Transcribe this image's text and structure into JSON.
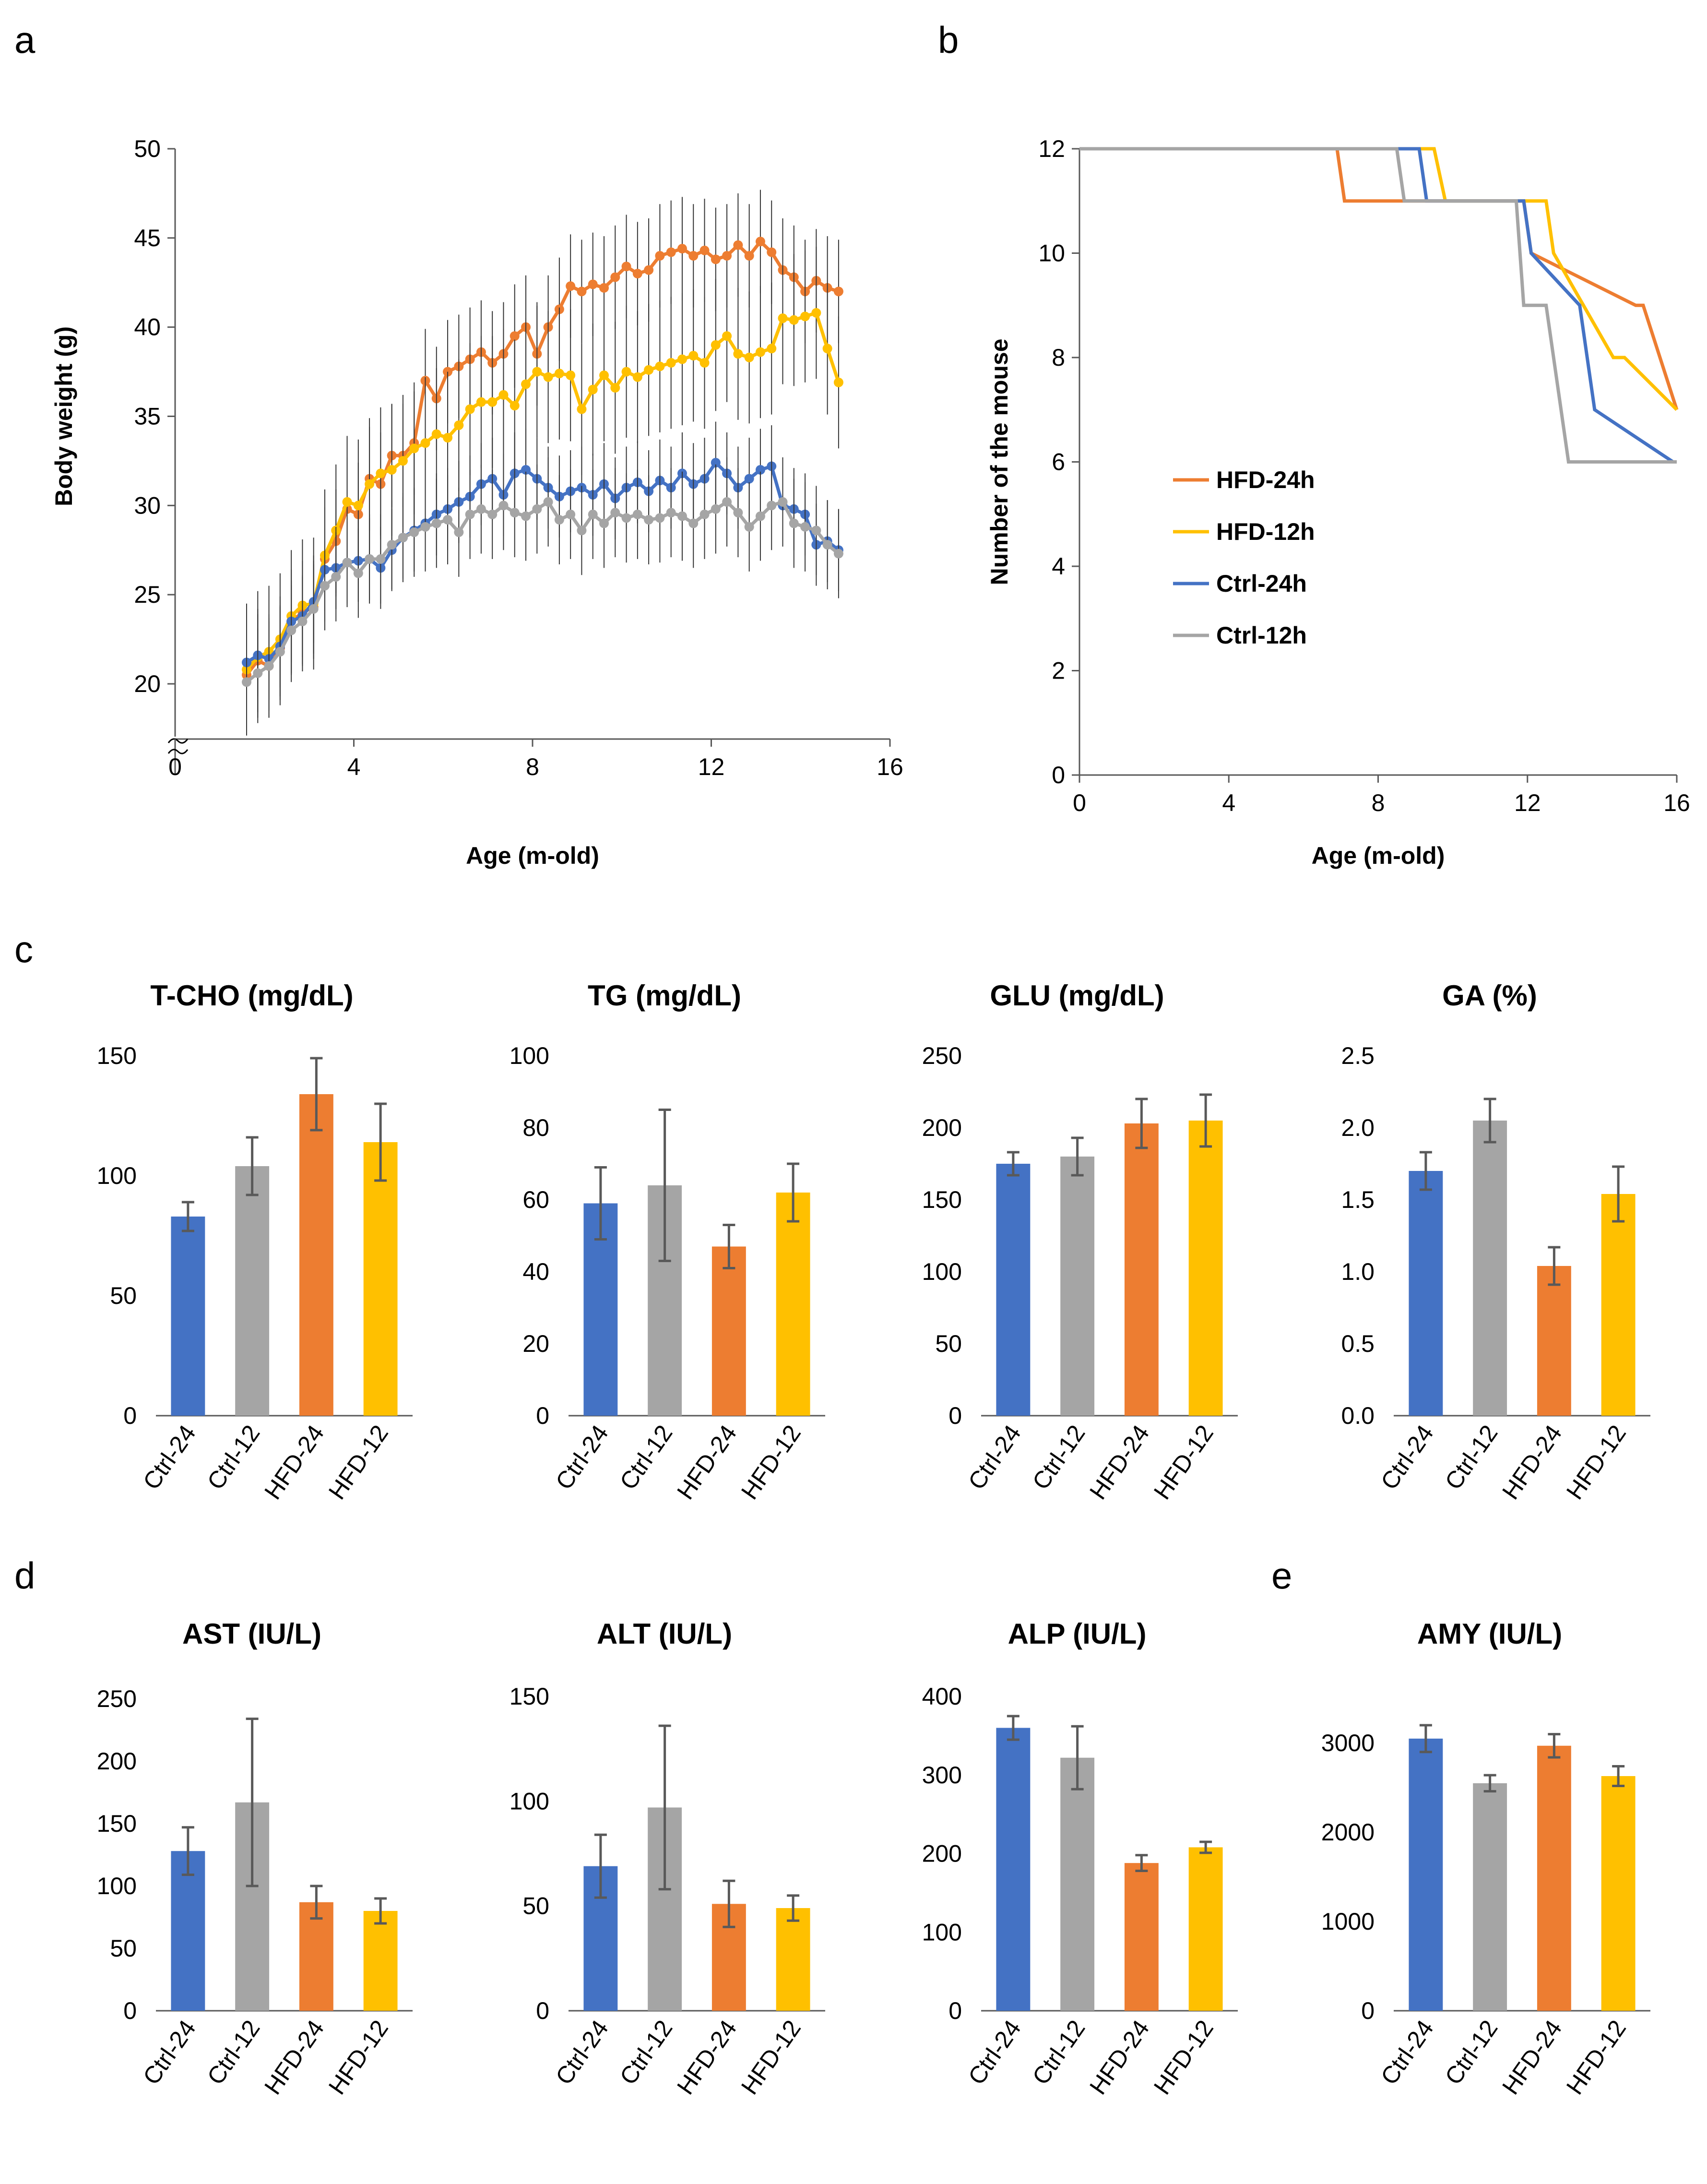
{
  "panel_labels": [
    "a",
    "b",
    "c",
    "d",
    "e"
  ],
  "colors": {
    "ctrl24": "#4472C4",
    "ctrl12": "#A5A5A5",
    "hfd24": "#ED7D31",
    "hfd12": "#FFC000",
    "axis": "#595959",
    "err": "#595959"
  },
  "chart_data": [
    {
      "id": "a",
      "type": "line",
      "xlabel": "Age (m-old)",
      "ylabel": "Body weight (g)",
      "xlim": [
        0,
        16
      ],
      "ylim": [
        20,
        50
      ],
      "xticks": [
        "0",
        "4",
        "8",
        "12",
        "16"
      ],
      "yticks": [
        "20",
        "25",
        "30",
        "35",
        "40",
        "45",
        "50"
      ],
      "axis_break": true,
      "x_start": 1.6,
      "x_step": 0.25,
      "series": [
        {
          "name": "HFD-24h",
          "color_key": "hfd24",
          "error": 2.9,
          "values": [
            20.5,
            21.3,
            21.0,
            22.0,
            23.5,
            24.0,
            24.3,
            27.0,
            28.0,
            29.8,
            29.5,
            31.5,
            31.2,
            32.8,
            32.8,
            33.5,
            37.0,
            36.0,
            37.5,
            37.8,
            38.2,
            38.6,
            38.0,
            38.5,
            39.5,
            40.0,
            38.5,
            40.0,
            41.0,
            42.3,
            42.0,
            42.4,
            42.2,
            42.8,
            43.4,
            43.0,
            43.2,
            44.0,
            44.2,
            44.4,
            44.0,
            44.3,
            43.8,
            44.0,
            44.6,
            44.0,
            44.8,
            44.2,
            43.2,
            42.8,
            42.0,
            42.6,
            42.2,
            42.0
          ]
        },
        {
          "name": "HFD-12h",
          "color_key": "hfd12",
          "error": 3.7,
          "values": [
            20.8,
            21.5,
            21.8,
            22.5,
            23.8,
            24.4,
            24.5,
            27.2,
            28.6,
            30.2,
            30.0,
            31.2,
            31.8,
            32.0,
            32.5,
            33.2,
            33.5,
            34.0,
            33.8,
            34.5,
            35.4,
            35.8,
            35.8,
            36.2,
            35.6,
            36.8,
            37.5,
            37.2,
            37.4,
            37.3,
            35.4,
            36.5,
            37.3,
            36.6,
            37.5,
            37.2,
            37.6,
            37.8,
            38.0,
            38.2,
            38.4,
            38.0,
            39.0,
            39.5,
            38.5,
            38.3,
            38.6,
            38.8,
            40.5,
            40.4,
            40.6,
            40.8,
            38.8,
            36.9
          ]
        },
        {
          "name": "Ctrl-24h",
          "color_key": "ctrl24",
          "error": 2.3,
          "values": [
            21.2,
            21.6,
            21.4,
            22.1,
            23.5,
            23.8,
            24.6,
            26.4,
            26.5,
            26.8,
            26.9,
            27.0,
            26.5,
            27.5,
            28.2,
            28.6,
            29.0,
            29.5,
            29.8,
            30.2,
            30.5,
            31.2,
            31.5,
            30.6,
            31.8,
            32.0,
            31.5,
            31.0,
            30.5,
            30.8,
            31.0,
            30.6,
            31.2,
            30.4,
            31.0,
            31.3,
            30.8,
            31.4,
            31.0,
            31.8,
            31.2,
            31.5,
            32.4,
            31.8,
            31.0,
            31.5,
            32.0,
            32.2,
            30.0,
            29.8,
            29.5,
            27.8,
            28.0,
            27.5
          ]
        },
        {
          "name": "Ctrl-12h",
          "color_key": "ctrl12",
          "error": 2.5,
          "values": [
            20.1,
            20.6,
            21.0,
            21.8,
            23.0,
            23.5,
            24.2,
            25.5,
            26.0,
            26.8,
            26.2,
            27.0,
            27.0,
            27.8,
            28.2,
            28.5,
            28.8,
            29.0,
            29.2,
            28.5,
            29.5,
            29.8,
            29.5,
            30.0,
            29.6,
            29.4,
            29.8,
            30.2,
            29.2,
            29.5,
            28.6,
            29.5,
            29.0,
            29.6,
            29.3,
            29.5,
            29.2,
            29.3,
            29.6,
            29.4,
            29.0,
            29.5,
            29.8,
            30.2,
            29.6,
            28.8,
            29.4,
            30.0,
            30.2,
            29.0,
            28.8,
            28.6,
            27.8,
            27.3
          ]
        }
      ]
    },
    {
      "id": "b",
      "type": "line",
      "xlabel": "Age (m-old)",
      "ylabel": "Number of the mouse",
      "xlim": [
        0,
        16
      ],
      "ylim": [
        0,
        12
      ],
      "xticks": [
        "0",
        "4",
        "8",
        "12",
        "16"
      ],
      "yticks": [
        "0",
        "2",
        "4",
        "6",
        "8",
        "10",
        "12"
      ],
      "legend": [
        "HFD-24h",
        "HFD-12h",
        "Ctrl-24h",
        "Ctrl-12h"
      ],
      "series": [
        {
          "name": "HFD-24h",
          "color_key": "hfd24",
          "x": [
            0,
            6.9,
            7.1,
            11.9,
            12.1,
            14.9,
            15.1,
            16
          ],
          "y": [
            12,
            12,
            11,
            11,
            10,
            9,
            9,
            7
          ]
        },
        {
          "name": "HFD-12h",
          "color_key": "hfd12",
          "x": [
            0,
            9.5,
            9.8,
            12.5,
            12.7,
            14.3,
            14.6,
            16
          ],
          "y": [
            12,
            12,
            11,
            11,
            10,
            8,
            8,
            7
          ]
        },
        {
          "name": "Ctrl-24h",
          "color_key": "ctrl24",
          "x": [
            0,
            9.1,
            9.3,
            11.9,
            12.1,
            13.4,
            13.8,
            15.9
          ],
          "y": [
            12,
            12,
            11,
            11,
            10,
            9,
            7,
            6
          ]
        },
        {
          "name": "Ctrl-12h",
          "color_key": "ctrl12",
          "x": [
            0,
            8.5,
            8.7,
            11.7,
            11.9,
            12.5,
            13.1,
            16
          ],
          "y": [
            12,
            12,
            11,
            11,
            9,
            9,
            6,
            6
          ]
        }
      ]
    },
    {
      "id": "c1",
      "type": "bar",
      "title": "T-CHO (mg/dL)",
      "categories": [
        "Ctrl-24",
        "Ctrl-12",
        "HFD-24",
        "HFD-12"
      ],
      "values": [
        83,
        104,
        134,
        114
      ],
      "errors": [
        6,
        12,
        15,
        16
      ],
      "ylim": [
        0,
        150
      ],
      "yticks": [
        "0",
        "50",
        "100",
        "150"
      ]
    },
    {
      "id": "c2",
      "type": "bar",
      "title": "TG (mg/dL)",
      "categories": [
        "Ctrl-24",
        "Ctrl-12",
        "HFD-24",
        "HFD-12"
      ],
      "values": [
        59,
        64,
        47,
        62
      ],
      "errors": [
        10,
        21,
        6,
        8
      ],
      "ylim": [
        0,
        100
      ],
      "yticks": [
        "0",
        "20",
        "40",
        "60",
        "80",
        "100"
      ]
    },
    {
      "id": "c3",
      "type": "bar",
      "title": "GLU (mg/dL)",
      "categories": [
        "Ctrl-24",
        "Ctrl-12",
        "HFD-24",
        "HFD-12"
      ],
      "values": [
        175,
        180,
        203,
        205
      ],
      "errors": [
        8,
        13,
        17,
        18
      ],
      "ylim": [
        0,
        250
      ],
      "yticks": [
        "0",
        "50",
        "100",
        "150",
        "200",
        "250"
      ]
    },
    {
      "id": "c4",
      "type": "bar",
      "title": "GA (%)",
      "categories": [
        "Ctrl-24",
        "Ctrl-12",
        "HFD-24",
        "HFD-12"
      ],
      "values": [
        1.7,
        2.05,
        1.04,
        1.54
      ],
      "errors": [
        0.13,
        0.15,
        0.13,
        0.19
      ],
      "ylim": [
        0,
        2.5
      ],
      "yticks": [
        "0.0",
        "0.5",
        "1.0",
        "1.5",
        "2.0",
        "2.5"
      ]
    },
    {
      "id": "d1",
      "type": "bar",
      "title": "AST (IU/L)",
      "categories": [
        "Ctrl-24",
        "Ctrl-12",
        "HFD-24",
        "HFD-12"
      ],
      "values": [
        128,
        167,
        87,
        80
      ],
      "errors": [
        19,
        67,
        13,
        10
      ],
      "ylim": [
        0,
        250
      ],
      "yticks": [
        "0",
        "50",
        "100",
        "150",
        "200",
        "250"
      ]
    },
    {
      "id": "d2",
      "type": "bar",
      "title": "ALT (IU/L)",
      "categories": [
        "Ctrl-24",
        "Ctrl-12",
        "HFD-24",
        "HFD-12"
      ],
      "values": [
        69,
        97,
        51,
        49
      ],
      "errors": [
        15,
        39,
        11,
        6
      ],
      "ylim": [
        0,
        150
      ],
      "yticks": [
        "0",
        "50",
        "100",
        "150"
      ]
    },
    {
      "id": "d3",
      "type": "bar",
      "title": "ALP (IU/L)",
      "categories": [
        "Ctrl-24",
        "Ctrl-12",
        "HFD-24",
        "HFD-12"
      ],
      "values": [
        360,
        322,
        188,
        208
      ],
      "errors": [
        15,
        40,
        10,
        7
      ],
      "ylim": [
        0,
        400
      ],
      "yticks": [
        "0",
        "100",
        "200",
        "300",
        "400"
      ]
    },
    {
      "id": "e1",
      "type": "bar",
      "title": "AMY (IU/L)",
      "categories": [
        "Ctrl-24",
        "Ctrl-12",
        "HFD-24",
        "HFD-12"
      ],
      "values": [
        3050,
        2550,
        2970,
        2630
      ],
      "errors": [
        150,
        90,
        130,
        110
      ],
      "ylim": [
        0,
        3200
      ],
      "yticks": [
        "0",
        "1000",
        "2000",
        "3000"
      ]
    }
  ]
}
